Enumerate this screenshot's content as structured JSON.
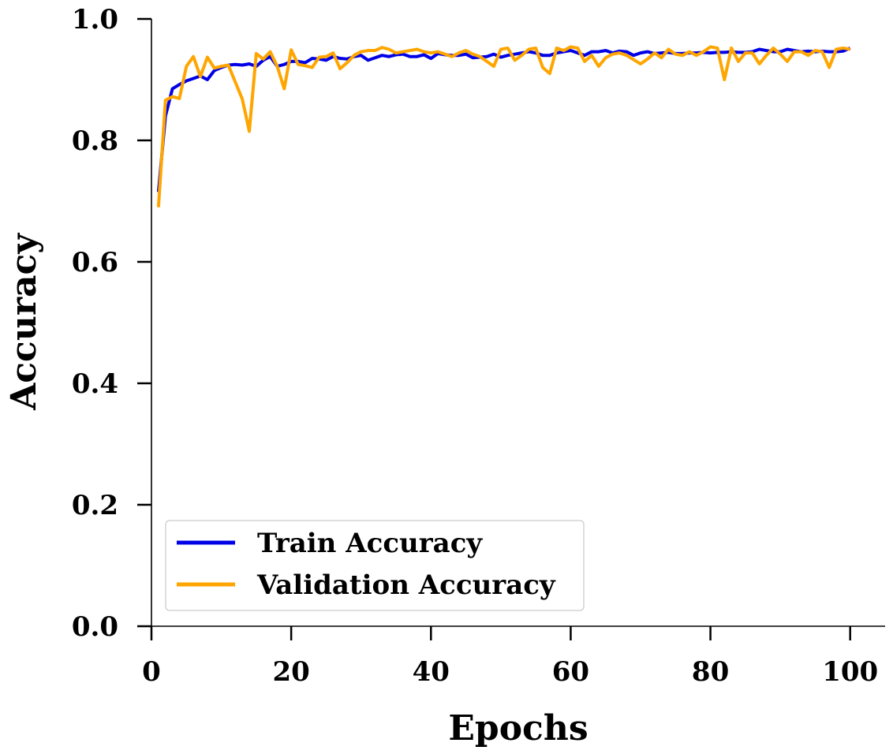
{
  "chart_data": {
    "type": "line",
    "title": "",
    "xlabel": "Epochs",
    "ylabel": "Accuracy",
    "xlim": [
      0,
      105
    ],
    "ylim": [
      0.0,
      1.0
    ],
    "xticks": [
      0,
      20,
      40,
      60,
      80,
      100
    ],
    "yticks": [
      0.0,
      0.2,
      0.4,
      0.6,
      0.8,
      1.0
    ],
    "xtick_labels": [
      "0",
      "20",
      "40",
      "60",
      "80",
      "100"
    ],
    "ytick_labels": [
      "0.0",
      "0.2",
      "0.4",
      "0.6",
      "0.8",
      "1.0"
    ],
    "grid": false,
    "legend": "bottom-left",
    "x": [
      1,
      2,
      3,
      4,
      5,
      6,
      7,
      8,
      9,
      10,
      11,
      12,
      13,
      14,
      15,
      16,
      17,
      18,
      19,
      20,
      21,
      22,
      23,
      24,
      25,
      26,
      27,
      28,
      29,
      30,
      31,
      32,
      33,
      34,
      35,
      36,
      37,
      38,
      39,
      40,
      41,
      42,
      43,
      44,
      45,
      46,
      47,
      48,
      49,
      50,
      51,
      52,
      53,
      54,
      55,
      56,
      57,
      58,
      59,
      60,
      61,
      62,
      63,
      64,
      65,
      66,
      67,
      68,
      69,
      70,
      71,
      72,
      73,
      74,
      75,
      76,
      77,
      78,
      79,
      80,
      81,
      82,
      83,
      84,
      85,
      86,
      87,
      88,
      89,
      90,
      91,
      92,
      93,
      94,
      95,
      96,
      97,
      98,
      99,
      100
    ],
    "series": [
      {
        "name": "Train Accuracy",
        "color": "#0000e6",
        "values": [
          0.715,
          0.84,
          0.885,
          0.892,
          0.898,
          0.902,
          0.906,
          0.9,
          0.915,
          0.92,
          0.924,
          0.925,
          0.924,
          0.926,
          0.922,
          0.932,
          0.938,
          0.922,
          0.925,
          0.93,
          0.93,
          0.928,
          0.935,
          0.934,
          0.932,
          0.938,
          0.935,
          0.934,
          0.938,
          0.94,
          0.932,
          0.936,
          0.94,
          0.938,
          0.941,
          0.942,
          0.938,
          0.938,
          0.941,
          0.935,
          0.943,
          0.941,
          0.94,
          0.94,
          0.942,
          0.936,
          0.937,
          0.938,
          0.942,
          0.937,
          0.94,
          0.942,
          0.944,
          0.946,
          0.944,
          0.94,
          0.94,
          0.944,
          0.946,
          0.948,
          0.944,
          0.94,
          0.946,
          0.946,
          0.948,
          0.944,
          0.947,
          0.946,
          0.94,
          0.944,
          0.946,
          0.943,
          0.944,
          0.945,
          0.943,
          0.943,
          0.944,
          0.944,
          0.945,
          0.944,
          0.945,
          0.945,
          0.946,
          0.945,
          0.945,
          0.946,
          0.95,
          0.948,
          0.946,
          0.946,
          0.95,
          0.948,
          0.946,
          0.947,
          0.946,
          0.947,
          0.946,
          0.946,
          0.947,
          0.952
        ]
      },
      {
        "name": "Validation Accuracy",
        "color": "#ffa500",
        "values": [
          0.69,
          0.866,
          0.872,
          0.869,
          0.922,
          0.938,
          0.905,
          0.937,
          0.919,
          0.922,
          0.924,
          0.896,
          0.868,
          0.815,
          0.943,
          0.934,
          0.946,
          0.922,
          0.885,
          0.949,
          0.925,
          0.923,
          0.92,
          0.937,
          0.938,
          0.944,
          0.918,
          0.928,
          0.94,
          0.946,
          0.948,
          0.948,
          0.953,
          0.95,
          0.944,
          0.946,
          0.948,
          0.95,
          0.946,
          0.944,
          0.946,
          0.942,
          0.938,
          0.944,
          0.948,
          0.942,
          0.938,
          0.93,
          0.922,
          0.95,
          0.952,
          0.932,
          0.94,
          0.95,
          0.952,
          0.92,
          0.91,
          0.952,
          0.948,
          0.954,
          0.952,
          0.93,
          0.94,
          0.922,
          0.936,
          0.942,
          0.944,
          0.94,
          0.933,
          0.926,
          0.934,
          0.944,
          0.936,
          0.95,
          0.942,
          0.94,
          0.946,
          0.94,
          0.946,
          0.954,
          0.952,
          0.9,
          0.952,
          0.93,
          0.944,
          0.944,
          0.926,
          0.94,
          0.952,
          0.942,
          0.93,
          0.946,
          0.946,
          0.94,
          0.948,
          0.946,
          0.92,
          0.95,
          0.952,
          0.95
        ]
      }
    ]
  }
}
